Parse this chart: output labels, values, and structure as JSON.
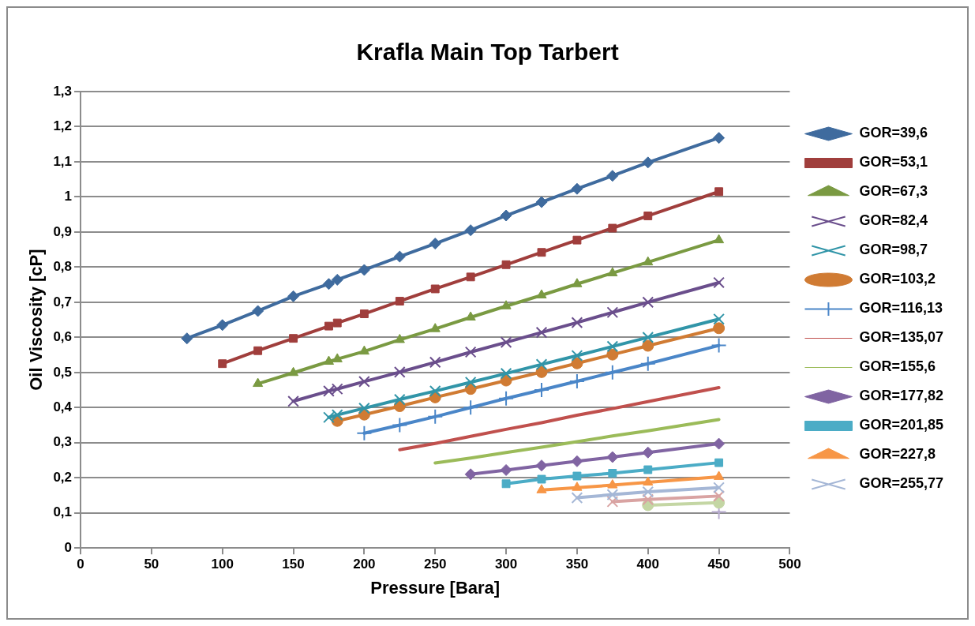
{
  "chart_data": {
    "type": "line",
    "title": "Krafla Main Top Tarbert",
    "xlabel": "Pressure [Bara]",
    "ylabel": "Oil Viscosity [cP]",
    "xlim": [
      0,
      500
    ],
    "xticks": [
      0,
      50,
      100,
      150,
      200,
      250,
      300,
      350,
      400,
      450,
      500
    ],
    "ylim": [
      0,
      1.3
    ],
    "yticks": [
      0,
      {
        "value": 0.1,
        "label": "0,1"
      },
      {
        "value": 0.2,
        "label": "0,2"
      },
      {
        "value": 0.3,
        "label": "0,3"
      },
      {
        "value": 0.4,
        "label": "0,4"
      },
      {
        "value": 0.5,
        "label": "0,5"
      },
      {
        "value": 0.6,
        "label": "0,6"
      },
      {
        "value": 0.7,
        "label": "0,7"
      },
      {
        "value": 0.8,
        "label": "0,8"
      },
      {
        "value": 0.9,
        "label": "0,9"
      },
      1,
      {
        "value": 1.1,
        "label": "1,1"
      },
      {
        "value": 1.2,
        "label": "1,2"
      },
      {
        "value": 1.3,
        "label": "1,3"
      }
    ],
    "grid": "y",
    "legend": "right",
    "series": [
      {
        "name": "GOR=39,6",
        "color": "#3f6b9e",
        "marker": "diamond",
        "x": [
          75,
          100,
          125,
          150,
          175,
          181,
          200,
          225,
          250,
          275,
          300,
          325,
          350,
          375,
          400,
          450
        ],
        "values": [
          0.597,
          0.635,
          0.675,
          0.717,
          0.752,
          0.764,
          0.792,
          0.83,
          0.867,
          0.905,
          0.947,
          0.985,
          1.023,
          1.06,
          1.098,
          1.168
        ]
      },
      {
        "name": "GOR=53,1",
        "color": "#a03e3c",
        "marker": "square",
        "x": [
          100,
          125,
          150,
          175,
          181,
          200,
          225,
          250,
          275,
          300,
          325,
          350,
          375,
          400,
          450
        ],
        "values": [
          0.525,
          0.562,
          0.597,
          0.632,
          0.641,
          0.667,
          0.703,
          0.738,
          0.772,
          0.807,
          0.842,
          0.877,
          0.911,
          0.946,
          1.015
        ]
      },
      {
        "name": "GOR=67,3",
        "color": "#7a9a42",
        "marker": "triangle",
        "x": [
          125,
          150,
          175,
          181,
          200,
          225,
          250,
          275,
          300,
          325,
          350,
          375,
          400,
          450
        ],
        "values": [
          0.468,
          0.499,
          0.531,
          0.538,
          0.56,
          0.593,
          0.624,
          0.657,
          0.689,
          0.72,
          0.752,
          0.783,
          0.814,
          0.877
        ]
      },
      {
        "name": "GOR=82,4",
        "color": "#6a4e8c",
        "marker": "cross",
        "x": [
          150,
          175,
          181,
          200,
          225,
          250,
          275,
          300,
          325,
          350,
          375,
          400,
          450
        ],
        "values": [
          0.418,
          0.447,
          0.453,
          0.474,
          0.501,
          0.529,
          0.558,
          0.586,
          0.614,
          0.642,
          0.671,
          0.7,
          0.756
        ]
      },
      {
        "name": "GOR=98,7",
        "color": "#3195a8",
        "marker": "cross",
        "x": [
          175,
          181,
          200,
          225,
          250,
          275,
          300,
          325,
          350,
          375,
          400,
          450
        ],
        "values": [
          0.372,
          0.379,
          0.398,
          0.423,
          0.447,
          0.472,
          0.497,
          0.523,
          0.548,
          0.574,
          0.6,
          0.652
        ]
      },
      {
        "name": "GOR=103,2",
        "color": "#d07b33",
        "marker": "circle",
        "x": [
          181,
          200,
          225,
          250,
          275,
          300,
          325,
          350,
          375,
          400,
          450
        ],
        "values": [
          0.362,
          0.38,
          0.404,
          0.429,
          0.453,
          0.477,
          0.501,
          0.526,
          0.551,
          0.576,
          0.626
        ]
      },
      {
        "name": "GOR=116,13",
        "color": "#4a86c8",
        "marker": "plus",
        "x": [
          200,
          225,
          250,
          275,
          300,
          325,
          350,
          375,
          400,
          450
        ],
        "values": [
          0.327,
          0.35,
          0.374,
          0.4,
          0.426,
          0.45,
          0.475,
          0.5,
          0.525,
          0.577
        ]
      },
      {
        "name": "GOR=135,07",
        "color": "#c0504d",
        "marker": "none",
        "x": [
          225,
          250,
          275,
          300,
          325,
          350,
          375,
          400,
          450
        ],
        "values": [
          0.28,
          0.298,
          0.318,
          0.338,
          0.357,
          0.378,
          0.397,
          0.417,
          0.457
        ]
      },
      {
        "name": "GOR=155,6",
        "color": "#9bbb59",
        "marker": "none",
        "x": [
          250,
          275,
          300,
          325,
          350,
          375,
          400,
          450
        ],
        "values": [
          0.242,
          0.256,
          0.272,
          0.287,
          0.303,
          0.319,
          0.334,
          0.366
        ]
      },
      {
        "name": "GOR=177,82",
        "color": "#8064a2",
        "marker": "diamond",
        "x": [
          275,
          300,
          325,
          350,
          375,
          400,
          450
        ],
        "values": [
          0.21,
          0.222,
          0.235,
          0.247,
          0.259,
          0.272,
          0.297
        ]
      },
      {
        "name": "GOR=201,85",
        "color": "#4bacc6",
        "marker": "square",
        "x": [
          300,
          325,
          350,
          375,
          400,
          450
        ],
        "values": [
          0.183,
          0.196,
          0.205,
          0.213,
          0.223,
          0.243
        ]
      },
      {
        "name": "GOR=227,8",
        "color": "#f79646",
        "marker": "triangle",
        "x": [
          325,
          350,
          375,
          400,
          450
        ],
        "values": [
          0.165,
          0.172,
          0.179,
          0.187,
          0.203
        ]
      },
      {
        "name": "GOR=255,77",
        "color": "#a5b7d6",
        "marker": "cross",
        "x": [
          350,
          375,
          400,
          450
        ],
        "values": [
          0.143,
          0.152,
          0.16,
          0.172
        ]
      },
      {
        "color": "#d9a3a2",
        "marker": "cross",
        "x": [
          375,
          400,
          450
        ],
        "values": [
          0.132,
          0.138,
          0.148
        ]
      },
      {
        "color": "#c4d6a4",
        "marker": "circle",
        "x": [
          400,
          450
        ],
        "values": [
          0.122,
          0.129
        ]
      },
      {
        "color": "#b7abcf",
        "marker": "plus",
        "x": [
          450
        ],
        "values": [
          0.103
        ]
      }
    ]
  }
}
